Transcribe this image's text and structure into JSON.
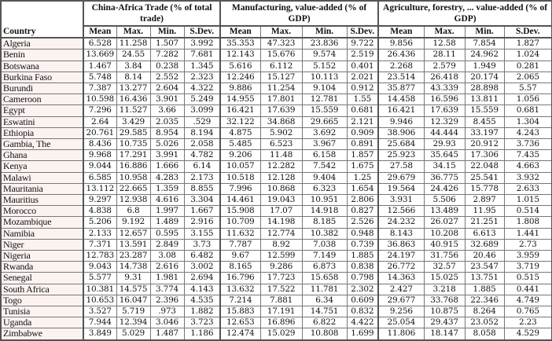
{
  "header": {
    "country": "Country",
    "groups": [
      {
        "title": "China-Africa Trade (% of total trade)"
      },
      {
        "title": "Manufacturing, value-added (% of GDP)"
      },
      {
        "title": "Agriculture, forestry, ... value-added (% of GDP)"
      }
    ],
    "stats": [
      "Mean",
      "Max.",
      "Min.",
      "S.Dev."
    ]
  },
  "rows": [
    {
      "country": "Algeria",
      "v": [
        "6.528",
        "11.258",
        "1.507",
        "3.992",
        "35.353",
        "47.323",
        "23.836",
        "9.722",
        "9.856",
        "12.58",
        "7.854",
        "1.827"
      ]
    },
    {
      "country": "Benin",
      "v": [
        "13.669",
        "24.55",
        "7.282",
        "7.681",
        "12.143",
        "15.676",
        "9.574",
        "2.519",
        "26.436",
        "28.11",
        "24.962",
        "1.024"
      ]
    },
    {
      "country": "Botswana",
      "v": [
        "1.467",
        "3.84",
        "0.238",
        "1.345",
        "5.616",
        "6.112",
        "5.152",
        "0.401",
        "2.268",
        "2.579",
        "1.949",
        "0.281"
      ]
    },
    {
      "country": "Burkina Faso",
      "v": [
        "5.748",
        "8.14",
        "2.552",
        "2.323",
        "12.246",
        "15.127",
        "10.113",
        "2.021",
        "23.514",
        "26.418",
        "20.174",
        "2.065"
      ]
    },
    {
      "country": "Burundi",
      "v": [
        "7.387",
        "13.277",
        "2.604",
        "4.322",
        "9.886",
        "11.254",
        "9.104",
        "0.912",
        "35.877",
        "43.339",
        "28.898",
        "5.57"
      ]
    },
    {
      "country": "Cameroon",
      "v": [
        "10.598",
        "16.436",
        "3.901",
        "5.249",
        "14.955",
        "17.801",
        "12.781",
        "1.55",
        "14.458",
        "16.596",
        "13.811",
        "1.056"
      ]
    },
    {
      "country": "Egypt",
      "v": [
        "7.296",
        "11.527",
        "3.66",
        "3.099",
        "16.421",
        "17.639",
        "15.559",
        "0.681",
        "16.421",
        "17.639",
        "15.559",
        "0.681"
      ]
    },
    {
      "country": "Eswatini",
      "v": [
        "2.64",
        "3.429",
        "2.035",
        ".529",
        "32.122",
        "34.868",
        "29.665",
        "2.121",
        "9.946",
        "12.329",
        "8.455",
        "1.304"
      ]
    },
    {
      "country": "Ethiopia",
      "v": [
        "20.761",
        "29.585",
        "8.954",
        "8.194",
        "4.875",
        "5.902",
        "3.692",
        "0.909",
        "38.906",
        "44.444",
        "33.197",
        "4.243"
      ]
    },
    {
      "country": "Gambia, The",
      "v": [
        "8.436",
        "10.735",
        "5.026",
        "2.058",
        "5.485",
        "6.523",
        "3.967",
        "0.891",
        "25.684",
        "29.93",
        "20.912",
        "3.736"
      ]
    },
    {
      "country": "Ghana",
      "v": [
        "9.968",
        "17.291",
        "3.991",
        "4.782",
        "9.206",
        "11.48",
        "6.158",
        "1.857",
        "25.923",
        "35.645",
        "17.306",
        "7.435"
      ]
    },
    {
      "country": "Kenya",
      "v": [
        "9.044",
        "16.886",
        "1.666",
        "6.14",
        "10.057",
        "12.282",
        "7.542",
        "1.675",
        "27.58",
        "34.15",
        "22.048",
        "4.663"
      ]
    },
    {
      "country": "Malawi",
      "v": [
        "6.585",
        "10.958",
        "4.283",
        "2.173",
        "10.518",
        "12.128",
        "9.404",
        "1.25",
        "29.679",
        "36.775",
        "25.541",
        "3.932"
      ]
    },
    {
      "country": "Mauritania",
      "v": [
        "13.112",
        "22.665",
        "1.359",
        "8.855",
        "7.996",
        "10.868",
        "6.323",
        "1.654",
        "19.564",
        "24.426",
        "15.778",
        "2.633"
      ]
    },
    {
      "country": "Mauritius",
      "v": [
        "9.297",
        "12.938",
        "4.616",
        "3.304",
        "14.461",
        "19.043",
        "10.951",
        "2.806",
        "3.931",
        "5.506",
        "2.897",
        "1.015"
      ]
    },
    {
      "country": "Morocco",
      "v": [
        "4.838",
        "6.8",
        "1.997",
        "1.667",
        "15.908",
        "17.07",
        "14.918",
        "0.827",
        "12.566",
        "13.489",
        "11.95",
        "0.514"
      ]
    },
    {
      "country": "Mozambique",
      "v": [
        "5.206",
        "9.192",
        "1.489",
        "2.916",
        "10.709",
        "14.198",
        "8.185",
        "2.526",
        "24.232",
        "26.027",
        "21.251",
        "1.808"
      ]
    },
    {
      "country": "Namibia",
      "v": [
        "2.133",
        "12.657",
        "0.595",
        "3.155",
        "11.632",
        "12.774",
        "10.382",
        "0.948",
        "8.143",
        "10.208",
        "6.613",
        "1.441"
      ]
    },
    {
      "country": "Niger",
      "v": [
        "7.371",
        "13.591",
        "2.849",
        "3.73",
        "7.787",
        "8.92",
        "7.038",
        "0.739",
        "36.863",
        "40.915",
        "32.689",
        "2.73"
      ]
    },
    {
      "country": "Nigeria",
      "v": [
        "12.783",
        "23.287",
        "3.08",
        "6.482",
        "9.67",
        "12.599",
        "7.149",
        "1.885",
        "24.197",
        "31.756",
        "20.46",
        "3.959"
      ]
    },
    {
      "country": "Rwanda",
      "v": [
        "9.043",
        "14.738",
        "2.616",
        "3.002",
        "8.165",
        "9.286",
        "6.873",
        "0.838",
        "26.772",
        "32.57",
        "23.547",
        "3.719"
      ]
    },
    {
      "country": "Senegal",
      "v": [
        "5.577",
        "9.31",
        "1.981",
        "2.694",
        "16.796",
        "17.723",
        "15.658",
        "0.798",
        "14.363",
        "15.025",
        "13.751",
        "0.515"
      ]
    },
    {
      "country": "South Africa",
      "v": [
        "10.381",
        "14.575",
        "3.774",
        "4.143",
        "13.632",
        "17.522",
        "11.781",
        "2.302",
        "2.427",
        "3.218",
        "1.885",
        "0.441"
      ]
    },
    {
      "country": "Togo",
      "v": [
        "10.653",
        "16.047",
        "2.396",
        "4.535",
        "7.214",
        "7.881",
        "6.34",
        "0.609",
        "29.677",
        "33.768",
        "22.346",
        "4.749"
      ]
    },
    {
      "country": "Tunisia",
      "v": [
        "3.527",
        "5.719",
        ".973",
        "1.882",
        "15.883",
        "17.191",
        "14.751",
        "0.832",
        "9.256",
        "10.875",
        "8.264",
        "0.765"
      ]
    },
    {
      "country": "Uganda",
      "v": [
        "7.944",
        "12.394",
        "3.046",
        "3.723",
        "12.653",
        "16.896",
        "6.822",
        "4.422",
        "25.054",
        "29.437",
        "23.052",
        "2.23"
      ]
    },
    {
      "country": "Zimbabwe",
      "v": [
        "3.849",
        "5.029",
        "1.487",
        "1.186",
        "12.474",
        "15.029",
        "10.808",
        "1.699",
        "11.806",
        "18.147",
        "8.058",
        "4.529"
      ]
    }
  ]
}
